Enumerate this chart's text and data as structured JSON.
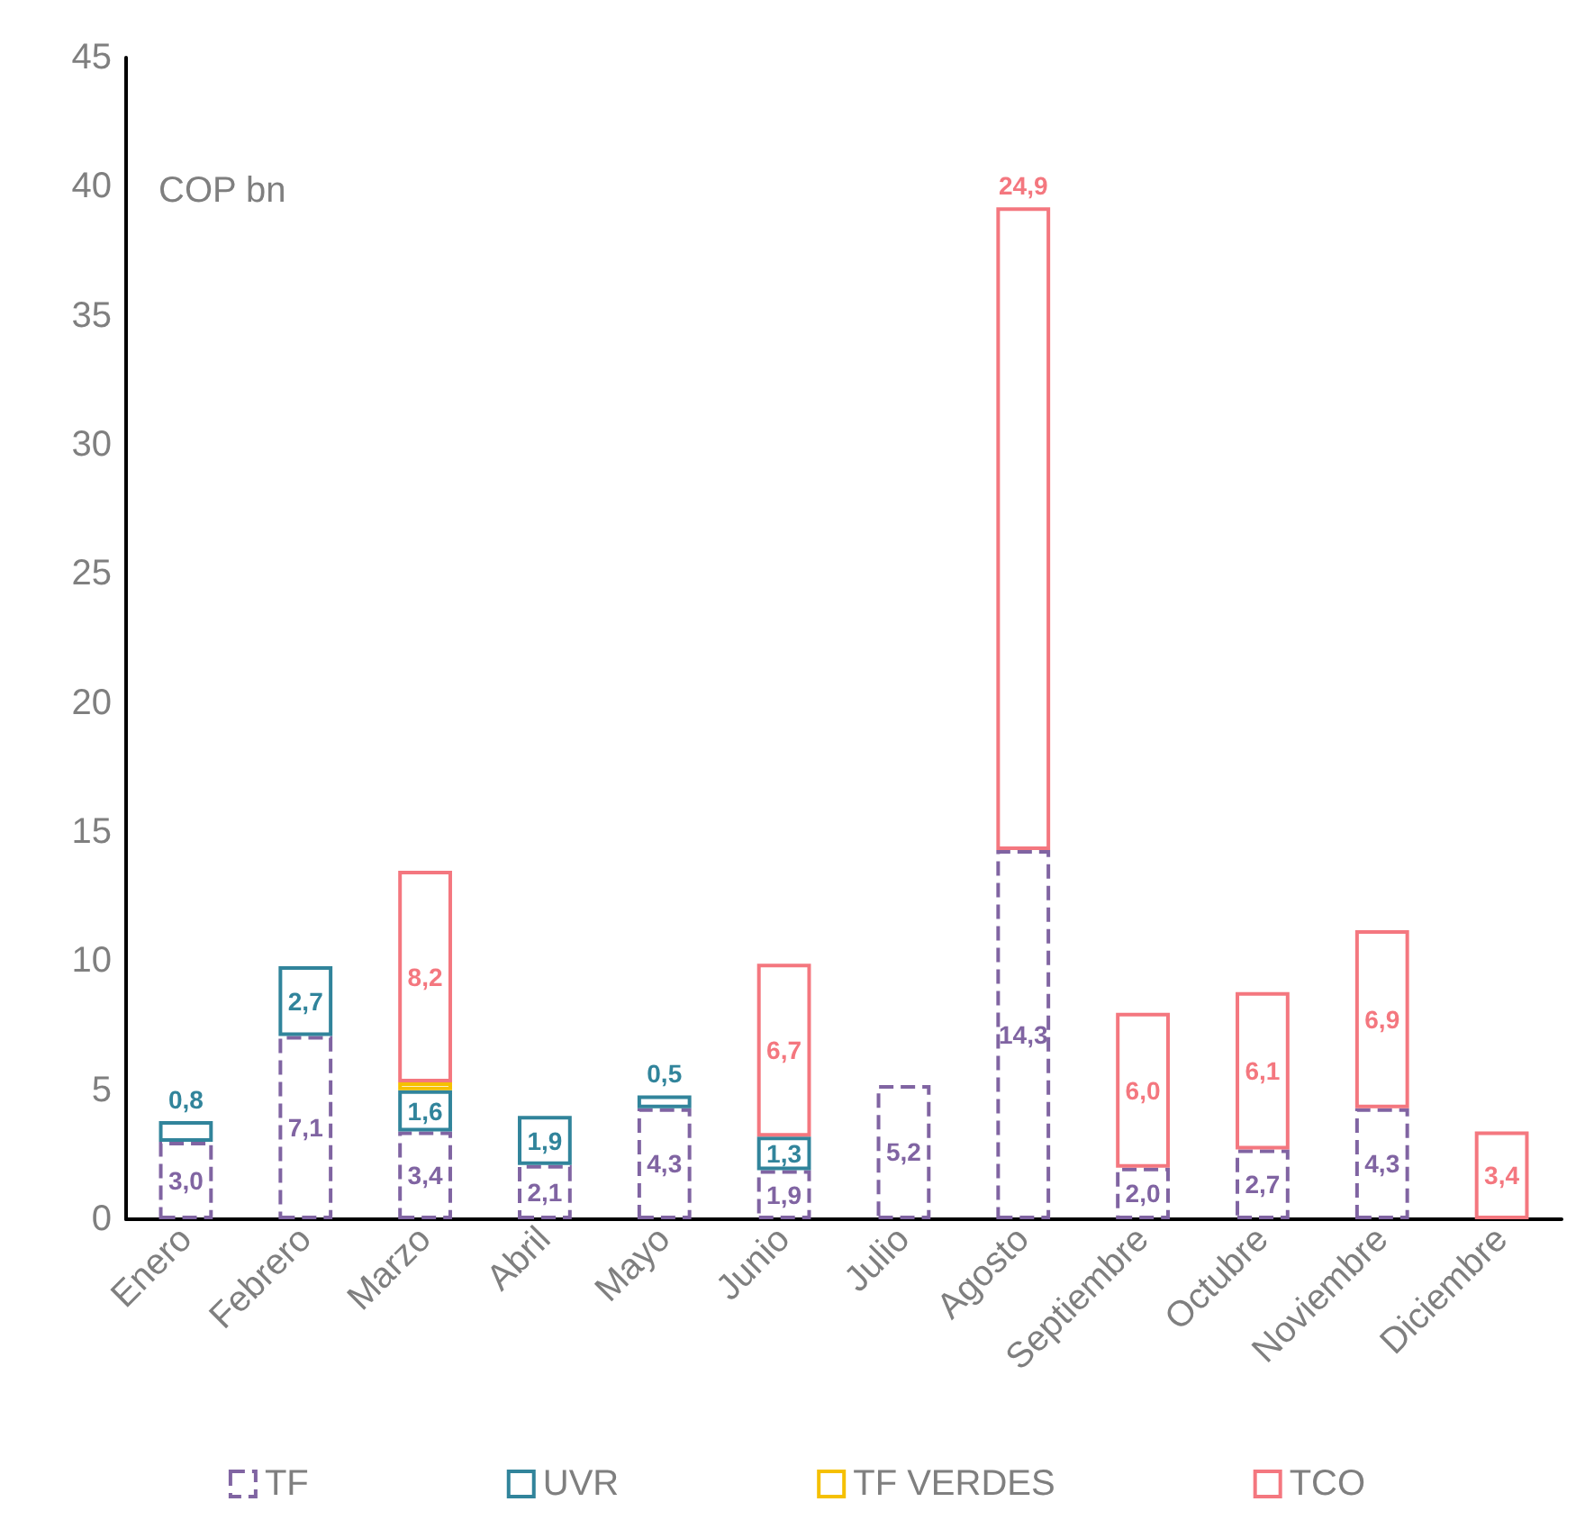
{
  "chart_data": {
    "type": "bar",
    "stacked": true,
    "categories": [
      "Enero",
      "Febrero",
      "Marzo",
      "Abril",
      "Mayo",
      "Junio",
      "Julio",
      "Agosto",
      "Septiembre",
      "Octubre",
      "Noviembre",
      "Diciembre"
    ],
    "series": [
      {
        "name": "TF",
        "color": "#8064a2",
        "line_style": "dashed",
        "values": [
          3.0,
          7.1,
          3.4,
          2.1,
          4.3,
          1.9,
          5.2,
          14.3,
          2.0,
          2.7,
          4.3,
          null
        ],
        "value_labels": [
          "3,0",
          "7,1",
          "3,4",
          "2,1",
          "4,3",
          "1,9",
          "5,2",
          "14,3",
          "2,0",
          "2,7",
          "4,3",
          null
        ]
      },
      {
        "name": "UVR",
        "color": "#31849b",
        "values": [
          0.8,
          2.7,
          1.6,
          1.9,
          0.5,
          1.3,
          null,
          null,
          null,
          null,
          null,
          null
        ],
        "value_labels": [
          "0,8",
          "2,7",
          "1,6",
          "1,9",
          "0,5",
          "1,3",
          null,
          null,
          null,
          null,
          null,
          null
        ]
      },
      {
        "name": "TF VERDES",
        "color": "#f5c000",
        "values": [
          null,
          null,
          0.3,
          null,
          null,
          null,
          null,
          null,
          null,
          null,
          null,
          null
        ]
      },
      {
        "name": "TCO",
        "color": "#f4777f",
        "values": [
          null,
          null,
          8.2,
          null,
          null,
          6.7,
          null,
          24.9,
          6.0,
          6.1,
          6.9,
          3.4
        ],
        "value_labels": [
          null,
          null,
          "8,2",
          null,
          null,
          "6,7",
          null,
          "24,9",
          "6,0",
          "6,1",
          "6,9",
          "3,4"
        ]
      }
    ],
    "ylim": [
      0,
      45
    ],
    "yticks": [
      0,
      5,
      10,
      15,
      20,
      25,
      30,
      35,
      40,
      45
    ],
    "grid": false,
    "legend": "bottom",
    "annotations": [
      "COP bn"
    ]
  }
}
